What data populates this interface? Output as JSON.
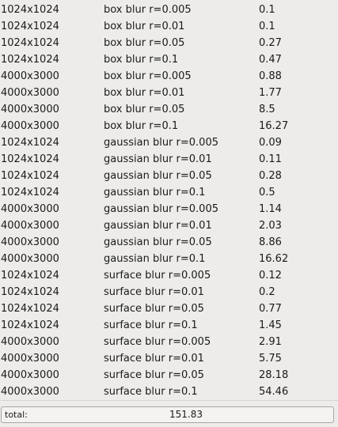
{
  "results": [
    {
      "size": "1024x1024",
      "filter": "box blur r=0.005",
      "time": "0.1"
    },
    {
      "size": "1024x1024",
      "filter": "box blur r=0.01",
      "time": "0.1"
    },
    {
      "size": "1024x1024",
      "filter": "box blur r=0.05",
      "time": "0.27"
    },
    {
      "size": "1024x1024",
      "filter": "box blur r=0.1",
      "time": "0.47"
    },
    {
      "size": "4000x3000",
      "filter": "box blur r=0.005",
      "time": "0.88"
    },
    {
      "size": "4000x3000",
      "filter": "box blur r=0.01",
      "time": "1.77"
    },
    {
      "size": "4000x3000",
      "filter": "box blur r=0.05",
      "time": "8.5"
    },
    {
      "size": "4000x3000",
      "filter": "box blur r=0.1",
      "time": "16.27"
    },
    {
      "size": "1024x1024",
      "filter": "gaussian blur r=0.005",
      "time": "0.09"
    },
    {
      "size": "1024x1024",
      "filter": "gaussian blur r=0.01",
      "time": "0.11"
    },
    {
      "size": "1024x1024",
      "filter": "gaussian blur r=0.05",
      "time": "0.28"
    },
    {
      "size": "1024x1024",
      "filter": "gaussian blur r=0.1",
      "time": "0.5"
    },
    {
      "size": "4000x3000",
      "filter": "gaussian blur r=0.005",
      "time": "1.14"
    },
    {
      "size": "4000x3000",
      "filter": "gaussian blur r=0.01",
      "time": "2.03"
    },
    {
      "size": "4000x3000",
      "filter": "gaussian blur r=0.05",
      "time": "8.86"
    },
    {
      "size": "4000x3000",
      "filter": "gaussian blur r=0.1",
      "time": "16.62"
    },
    {
      "size": "1024x1024",
      "filter": "surface blur r=0.005",
      "time": "0.12"
    },
    {
      "size": "1024x1024",
      "filter": "surface blur r=0.01",
      "time": "0.2"
    },
    {
      "size": "1024x1024",
      "filter": "surface blur r=0.05",
      "time": "0.77"
    },
    {
      "size": "1024x1024",
      "filter": "surface blur r=0.1",
      "time": "1.45"
    },
    {
      "size": "4000x3000",
      "filter": "surface blur r=0.005",
      "time": "2.91"
    },
    {
      "size": "4000x3000",
      "filter": "surface blur r=0.01",
      "time": "5.75"
    },
    {
      "size": "4000x3000",
      "filter": "surface blur r=0.05",
      "time": "28.18"
    },
    {
      "size": "4000x3000",
      "filter": "surface blur r=0.1",
      "time": "54.46"
    }
  ],
  "total": {
    "label": "total:",
    "value": "151.83"
  }
}
